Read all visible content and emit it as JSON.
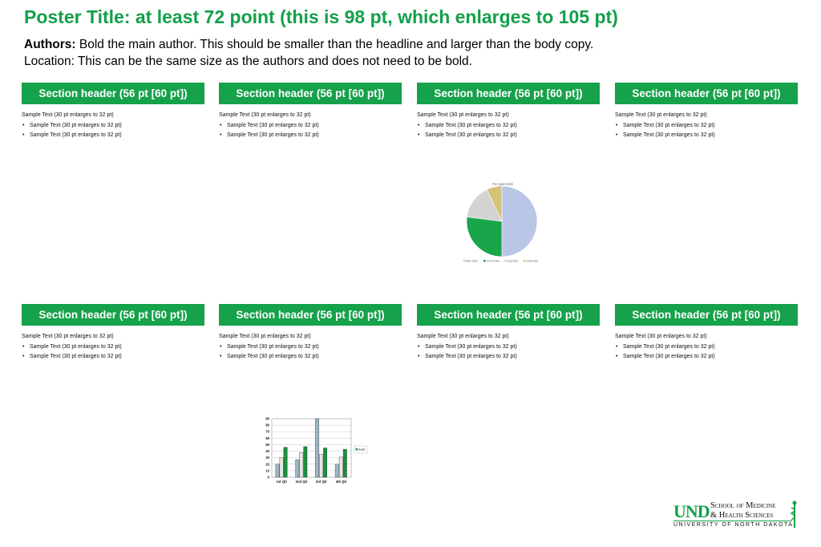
{
  "header": {
    "title": "Poster Title: at least 72 point (this is 98 pt, which enlarges to 105 pt)",
    "authors_label": "Authors:",
    "authors_text": " Bold the main author. This should be smaller than the headline and larger than the body copy.",
    "location_text": "Location: This can be the same size as the authors and does not need to be bold."
  },
  "sections": [
    {
      "header": "Section header (56 pt [60 pt])",
      "sample": "Sample Text (30 pt enlarges to 32 pt)",
      "bullets": [
        "Sample Text (30 pt enlarges to 32 pt)",
        "Sample Text (30 pt enlarges to 32 pt)"
      ]
    },
    {
      "header": "Section header (56 pt [60 pt])",
      "sample": "Sample Text (30 pt enlarges to 32 pt)",
      "bullets": [
        "Sample Text (30 pt enlarges to 32 pt)",
        "Sample Text (30 pt enlarges to 32 pt)"
      ]
    },
    {
      "header": "Section header (56 pt [60 pt])",
      "sample": "Sample Text (30 pt enlarges to 32 pt)",
      "bullets": [
        "Sample Text (30 pt enlarges to 32 pt)",
        "Sample Text (30 pt enlarges to 32 pt)"
      ]
    },
    {
      "header": "Section header (56 pt [60 pt])",
      "sample": "Sample Text (30 pt enlarges to 32 pt)",
      "bullets": [
        "Sample Text (30 pt enlarges to 32 pt)",
        "Sample Text (30 pt enlarges to 32 pt)"
      ]
    },
    {
      "header": "Section header (56 pt [60 pt])",
      "sample": "Sample Text (30 pt enlarges to 32 pt)",
      "bullets": [
        "Sample Text (30 pt enlarges to 32 pt)",
        "Sample Text (30 pt enlarges to 32 pt)"
      ]
    },
    {
      "header": "Section header (56 pt [60 pt])",
      "sample": "Sample Text (30 pt enlarges to 32 pt)",
      "bullets": [
        "Sample Text (30 pt enlarges to 32 pt)",
        "Sample Text (30 pt enlarges to 32 pt)"
      ]
    },
    {
      "header": "Section header (56 pt [60 pt])",
      "sample": "Sample Text (30 pt enlarges to 32 pt)",
      "bullets": [
        "Sample Text (30 pt enlarges to 32 pt)",
        "Sample Text (30 pt enlarges to 32 pt)"
      ]
    },
    {
      "header": "Section header (56 pt [60 pt])",
      "sample": "Sample Text (30 pt enlarges to 32 pt)",
      "bullets": [
        "Sample Text (30 pt enlarges to 32 pt)",
        "Sample Text (30 pt enlarges to 32 pt)"
      ]
    }
  ],
  "chart_data": [
    {
      "type": "pie",
      "title": "Pie (percent)",
      "categories": [
        "Blue Data",
        "Green Data",
        "Gray Data",
        "Gold Data"
      ],
      "values": [
        50,
        27,
        16,
        7
      ],
      "colors": [
        "#b9c6e6",
        "#1aa54b",
        "#d3d3d3",
        "#d7c27a"
      ],
      "legend": "bottom"
    },
    {
      "type": "bar",
      "categories": [
        "1st Qtr",
        "2nd Qtr",
        "3rd Qtr",
        "4th Qtr"
      ],
      "series": [
        {
          "values": [
            20,
            27,
            90,
            20
          ],
          "color": "#9cb7c6"
        },
        {
          "values": [
            30,
            38,
            35,
            31
          ],
          "color": "#e8e8e0"
        },
        {
          "values": [
            46,
            47,
            45,
            43
          ],
          "color": "#1b8f3e"
        }
      ],
      "legend_label": "East",
      "yticks": [
        "0",
        "10",
        "20",
        "30",
        "40",
        "50",
        "60",
        "70",
        "80",
        "90"
      ],
      "ylim": [
        0,
        90
      ],
      "grid": true,
      "legend": "right"
    }
  ],
  "logo": {
    "mark": "UND",
    "line1": "School of Medicine",
    "line2": "& Health Sciences",
    "line3": "UNIVERSITY OF NORTH DAKOTA"
  }
}
